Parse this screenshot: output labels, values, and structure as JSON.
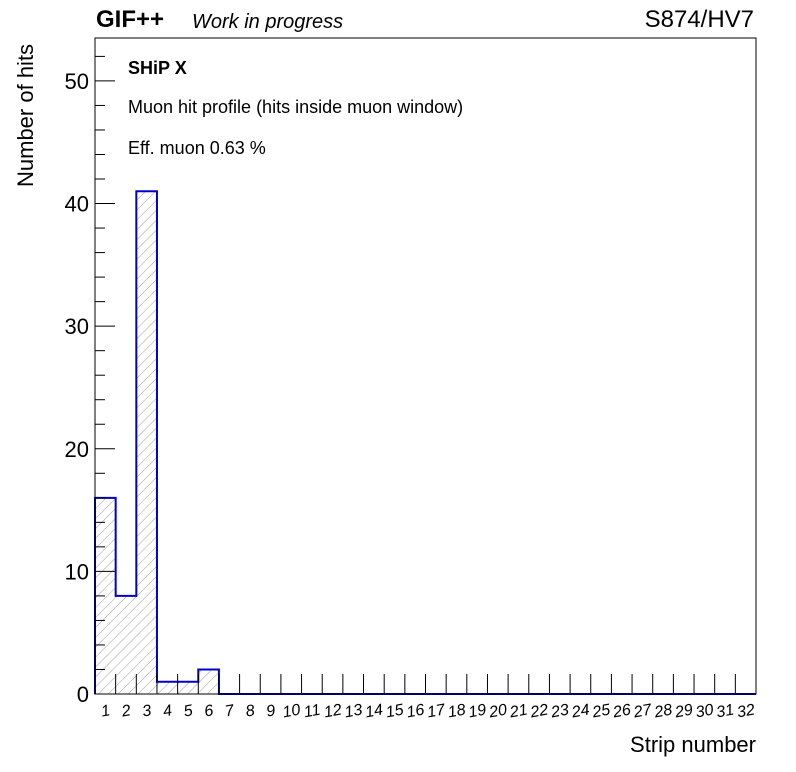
{
  "header": {
    "experiment": "GIF++",
    "status": "Work in progress",
    "run": "S874/HV7"
  },
  "annotations": {
    "title": "SHiP X",
    "description": "Muon hit profile (hits inside muon window)",
    "efficiency": "Eff. muon 0.63 %"
  },
  "colors": {
    "histogram_line": "#0000cc",
    "hatch": "#888888",
    "axis": "#000000"
  },
  "chart_data": {
    "type": "bar",
    "xlabel": "Strip number",
    "ylabel": "Number of hits",
    "categories": [
      "1",
      "2",
      "3",
      "4",
      "5",
      "6",
      "7",
      "8",
      "9",
      "10",
      "11",
      "12",
      "13",
      "14",
      "15",
      "16",
      "17",
      "18",
      "19",
      "20",
      "21",
      "22",
      "23",
      "24",
      "25",
      "26",
      "27",
      "28",
      "29",
      "30",
      "31",
      "32"
    ],
    "values": [
      16,
      8,
      41,
      1,
      1,
      2,
      0,
      0,
      0,
      0,
      0,
      0,
      0,
      0,
      0,
      0,
      0,
      0,
      0,
      0,
      0,
      0,
      0,
      0,
      0,
      0,
      0,
      0,
      0,
      0,
      0,
      0
    ],
    "ylim": [
      0,
      53.5
    ],
    "yticks": [
      0,
      10,
      20,
      30,
      40,
      50
    ],
    "grid": false,
    "legend": "none",
    "style": "hatched step histogram"
  }
}
